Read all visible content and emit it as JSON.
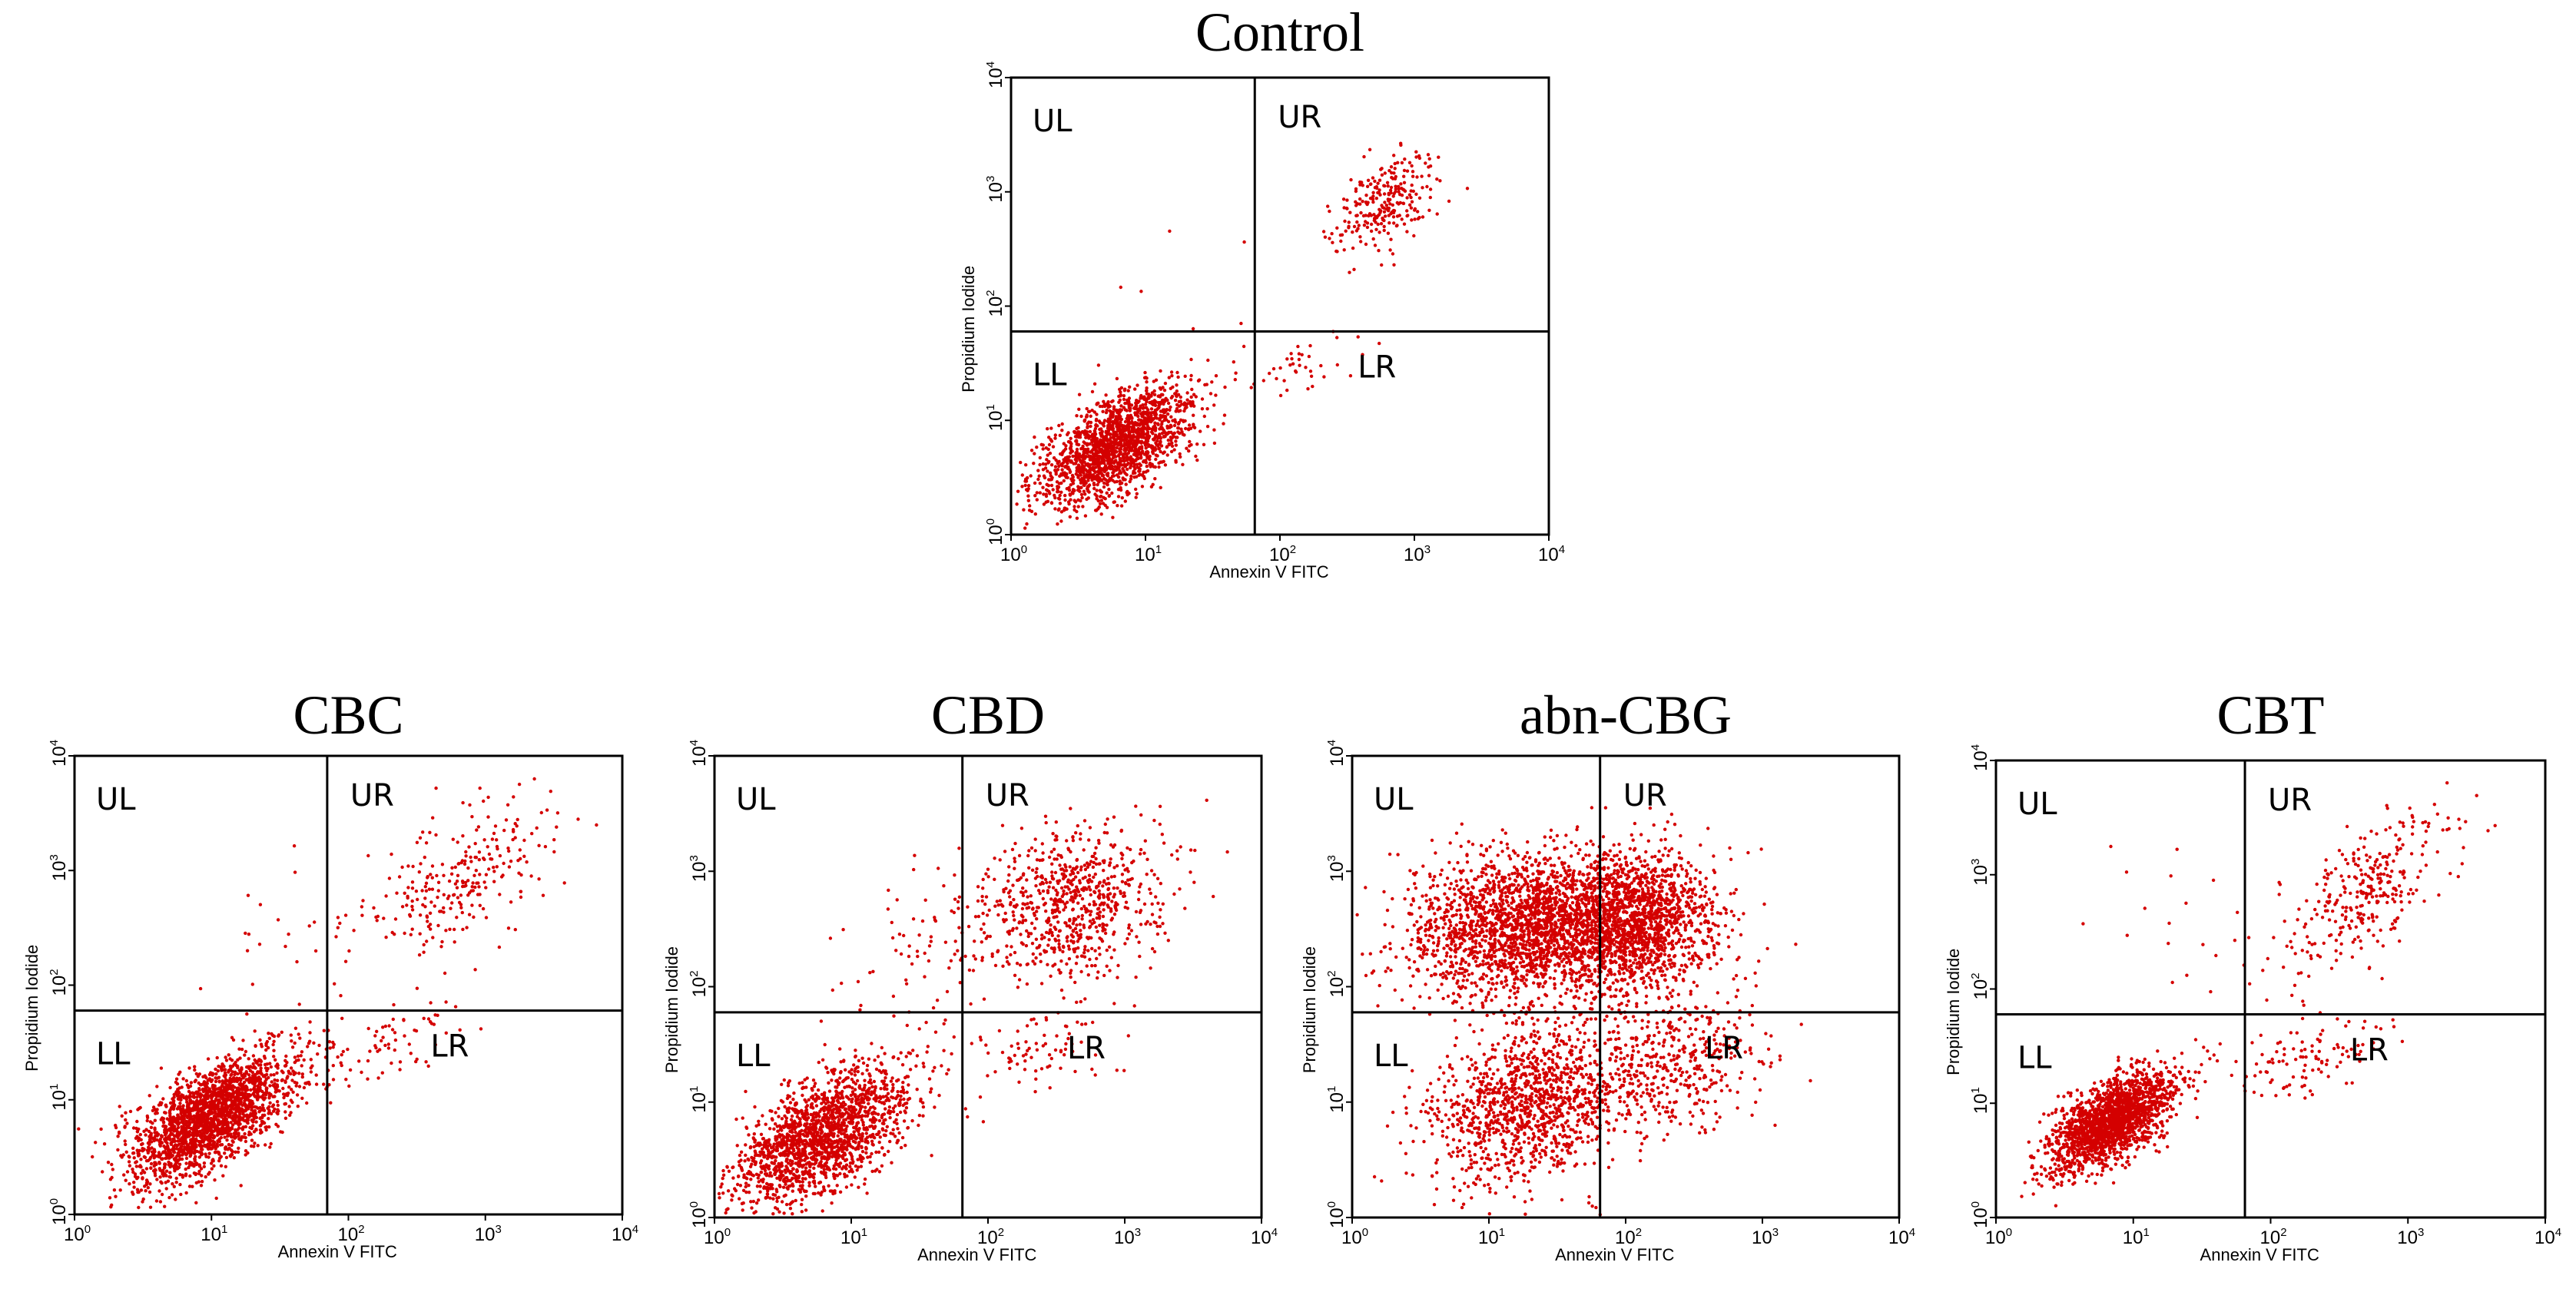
{
  "figure": {
    "point_color": "#d40000"
  },
  "chart_data": [
    {
      "type": "scatter",
      "title": "Control",
      "xlabel": "Annexin V FITC",
      "ylabel": "Propidium Iodide",
      "xscale": "log",
      "yscale": "log",
      "xlim": [
        1,
        10000
      ],
      "ylim": [
        1,
        10000
      ],
      "x_ticks": [
        "10^0",
        "10^1",
        "10^2",
        "10^3",
        "10^4"
      ],
      "y_ticks": [
        "10^0",
        "10^1",
        "10^2",
        "10^3",
        "10^4"
      ],
      "quadrant_gate": {
        "x": 65,
        "y": 60
      },
      "quadrant_labels": [
        "UL",
        "UR",
        "LL",
        "LR"
      ],
      "populations": [
        {
          "quadrant": "LL",
          "center": [
            6,
            6
          ],
          "spread": [
            0.28,
            0.26
          ],
          "rho": 0.6,
          "n": 1800
        },
        {
          "quadrant": "UR",
          "center": [
            600,
            800
          ],
          "spread": [
            0.2,
            0.22
          ],
          "rho": 0.5,
          "n": 260
        },
        {
          "quadrant": "LR",
          "center": [
            150,
            30
          ],
          "spread": [
            0.25,
            0.15
          ],
          "rho": 0.6,
          "n": 40
        },
        {
          "quadrant": "UL",
          "center": [
            20,
            150
          ],
          "spread": [
            0.3,
            0.25
          ],
          "rho": 0.0,
          "n": 6
        }
      ]
    },
    {
      "type": "scatter",
      "title": "CBC",
      "xlabel": "Annexin V FITC",
      "ylabel": "Propidium Iodide",
      "xscale": "log",
      "yscale": "log",
      "xlim": [
        1,
        10000
      ],
      "ylim": [
        1,
        10000
      ],
      "x_ticks": [
        "10^0",
        "10^1",
        "10^2",
        "10^3",
        "10^4"
      ],
      "y_ticks": [
        "10^0",
        "10^1",
        "10^2",
        "10^3",
        "10^4"
      ],
      "quadrant_gate": {
        "x": 70,
        "y": 60
      },
      "quadrant_labels": [
        "UL",
        "UR",
        "LL",
        "LR"
      ],
      "populations": [
        {
          "quadrant": "LL",
          "center": [
            10,
            7
          ],
          "spread": [
            0.3,
            0.28
          ],
          "rho": 0.65,
          "n": 2200
        },
        {
          "quadrant": "UR",
          "center": [
            700,
            900
          ],
          "spread": [
            0.35,
            0.35
          ],
          "rho": 0.6,
          "n": 260
        },
        {
          "quadrant": "LR",
          "center": [
            180,
            30
          ],
          "spread": [
            0.3,
            0.18
          ],
          "rho": 0.6,
          "n": 70
        },
        {
          "quadrant": "UL",
          "center": [
            30,
            200
          ],
          "spread": [
            0.3,
            0.3
          ],
          "rho": 0.2,
          "n": 25
        }
      ]
    },
    {
      "type": "scatter",
      "title": "CBD",
      "xlabel": "Annexin V FITC",
      "ylabel": "Propidium Iodide",
      "xscale": "log",
      "yscale": "log",
      "xlim": [
        1,
        10000
      ],
      "ylim": [
        1,
        10000
      ],
      "x_ticks": [
        "10^0",
        "10^1",
        "10^2",
        "10^3",
        "10^4"
      ],
      "y_ticks": [
        "10^0",
        "10^1",
        "10^2",
        "10^3",
        "10^4"
      ],
      "quadrant_gate": {
        "x": 65,
        "y": 60
      },
      "quadrant_labels": [
        "UL",
        "UR",
        "LL",
        "LR"
      ],
      "populations": [
        {
          "quadrant": "LL",
          "center": [
            6,
            5
          ],
          "spread": [
            0.32,
            0.3
          ],
          "rho": 0.6,
          "n": 1800
        },
        {
          "quadrant": "UR",
          "center": [
            400,
            500
          ],
          "spread": [
            0.35,
            0.35
          ],
          "rho": 0.2,
          "n": 750
        },
        {
          "quadrant": "LR",
          "center": [
            200,
            25
          ],
          "spread": [
            0.3,
            0.2
          ],
          "rho": 0.3,
          "n": 80
        },
        {
          "quadrant": "UL",
          "center": [
            30,
            200
          ],
          "spread": [
            0.3,
            0.35
          ],
          "rho": 0.2,
          "n": 70
        }
      ]
    },
    {
      "type": "scatter",
      "title": "abn-CBG",
      "xlabel": "Annexin V FITC",
      "ylabel": "Propidium Iodide",
      "xscale": "log",
      "yscale": "log",
      "xlim": [
        1,
        10000
      ],
      "ylim": [
        1,
        10000
      ],
      "x_ticks": [
        "10^0",
        "10^1",
        "10^2",
        "10^3",
        "10^4"
      ],
      "y_ticks": [
        "10^0",
        "10^1",
        "10^2",
        "10^3",
        "10^4"
      ],
      "quadrant_gate": {
        "x": 65,
        "y": 60
      },
      "quadrant_labels": [
        "UL",
        "UR",
        "LL",
        "LR"
      ],
      "populations": [
        {
          "quadrant": "UL",
          "center": [
            20,
            350
          ],
          "spread": [
            0.42,
            0.3
          ],
          "rho": 0.1,
          "n": 2200
        },
        {
          "quadrant": "UR",
          "center": [
            120,
            350
          ],
          "spread": [
            0.3,
            0.3
          ],
          "rho": 0.1,
          "n": 1500
        },
        {
          "quadrant": "LL",
          "center": [
            20,
            10
          ],
          "spread": [
            0.35,
            0.35
          ],
          "rho": 0.3,
          "n": 1200
        },
        {
          "quadrant": "LR",
          "center": [
            200,
            20
          ],
          "spread": [
            0.35,
            0.3
          ],
          "rho": 0.3,
          "n": 450
        }
      ]
    },
    {
      "type": "scatter",
      "title": "CBT",
      "xlabel": "Annexin V FITC",
      "ylabel": "Propidium Iodide",
      "xscale": "log",
      "yscale": "log",
      "xlim": [
        1,
        10000
      ],
      "ylim": [
        1,
        10000
      ],
      "x_ticks": [
        "10^0",
        "10^1",
        "10^2",
        "10^3",
        "10^4"
      ],
      "y_ticks": [
        "10^0",
        "10^1",
        "10^2",
        "10^3",
        "10^4"
      ],
      "quadrant_gate": {
        "x": 65,
        "y": 60
      },
      "quadrant_labels": [
        "UL",
        "UR",
        "LL",
        "LR"
      ],
      "populations": [
        {
          "quadrant": "LL",
          "center": [
            7,
            7
          ],
          "spread": [
            0.22,
            0.22
          ],
          "rho": 0.6,
          "n": 1900
        },
        {
          "quadrant": "UR",
          "center": [
            500,
            700
          ],
          "spread": [
            0.3,
            0.32
          ],
          "rho": 0.6,
          "n": 320
        },
        {
          "quadrant": "LR",
          "center": [
            200,
            25
          ],
          "spread": [
            0.3,
            0.18
          ],
          "rho": 0.5,
          "n": 110
        },
        {
          "quadrant": "UL",
          "center": [
            20,
            200
          ],
          "spread": [
            0.3,
            0.3
          ],
          "rho": 0.1,
          "n": 20
        }
      ]
    }
  ]
}
